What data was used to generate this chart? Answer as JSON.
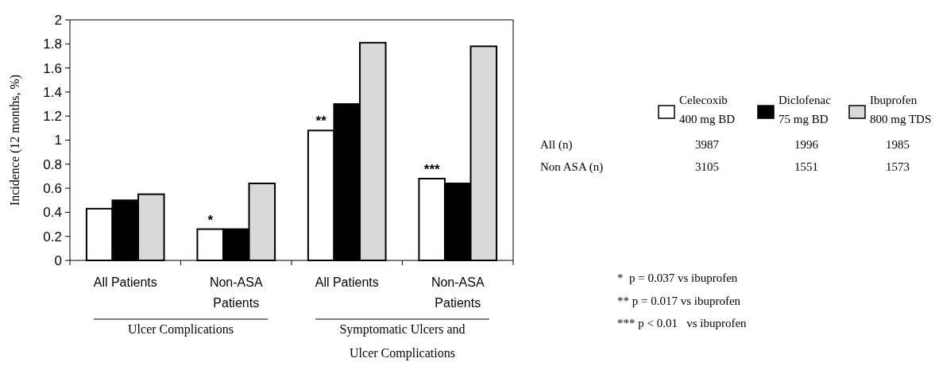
{
  "chart_data": {
    "type": "bar",
    "ylabel": "Incidence (12 months, %)",
    "categories": [
      "All Patients",
      "Non-ASA Patients",
      "All Patients",
      "Non-ASA Patients"
    ],
    "series": [
      {
        "name": "Celecoxib 400 mg BD",
        "color": "#ffffff",
        "values": [
          0.43,
          0.26,
          1.08,
          0.68
        ]
      },
      {
        "name": "Diclofenac 75 mg BD",
        "color": "#000000",
        "values": [
          0.5,
          0.26,
          1.3,
          0.64
        ]
      },
      {
        "name": "Ibuprofen 800 mg TDS",
        "color": "#d9d9d9",
        "values": [
          0.55,
          0.64,
          1.81,
          1.78
        ]
      }
    ],
    "ylim": [
      0,
      2
    ],
    "yticks": [
      0,
      0.2,
      0.4,
      0.6,
      0.8,
      1,
      1.2,
      1.4,
      1.6,
      1.8,
      2
    ],
    "grid": false,
    "legend": "right",
    "annotations": [
      "*",
      "**",
      "***",
      "All  (n)",
      "Non ASA (n)",
      "3987",
      "1996",
      "1985",
      "3105",
      "1551",
      "1573",
      "*  p = 0.037 vs ibuprofen",
      "** p = 0.017 vs ibuprofen",
      "*** p < 0.01   vs ibuprofen",
      "Ulcer Complications",
      "Symptomatic Ulcers and Ulcer Complications"
    ]
  }
}
